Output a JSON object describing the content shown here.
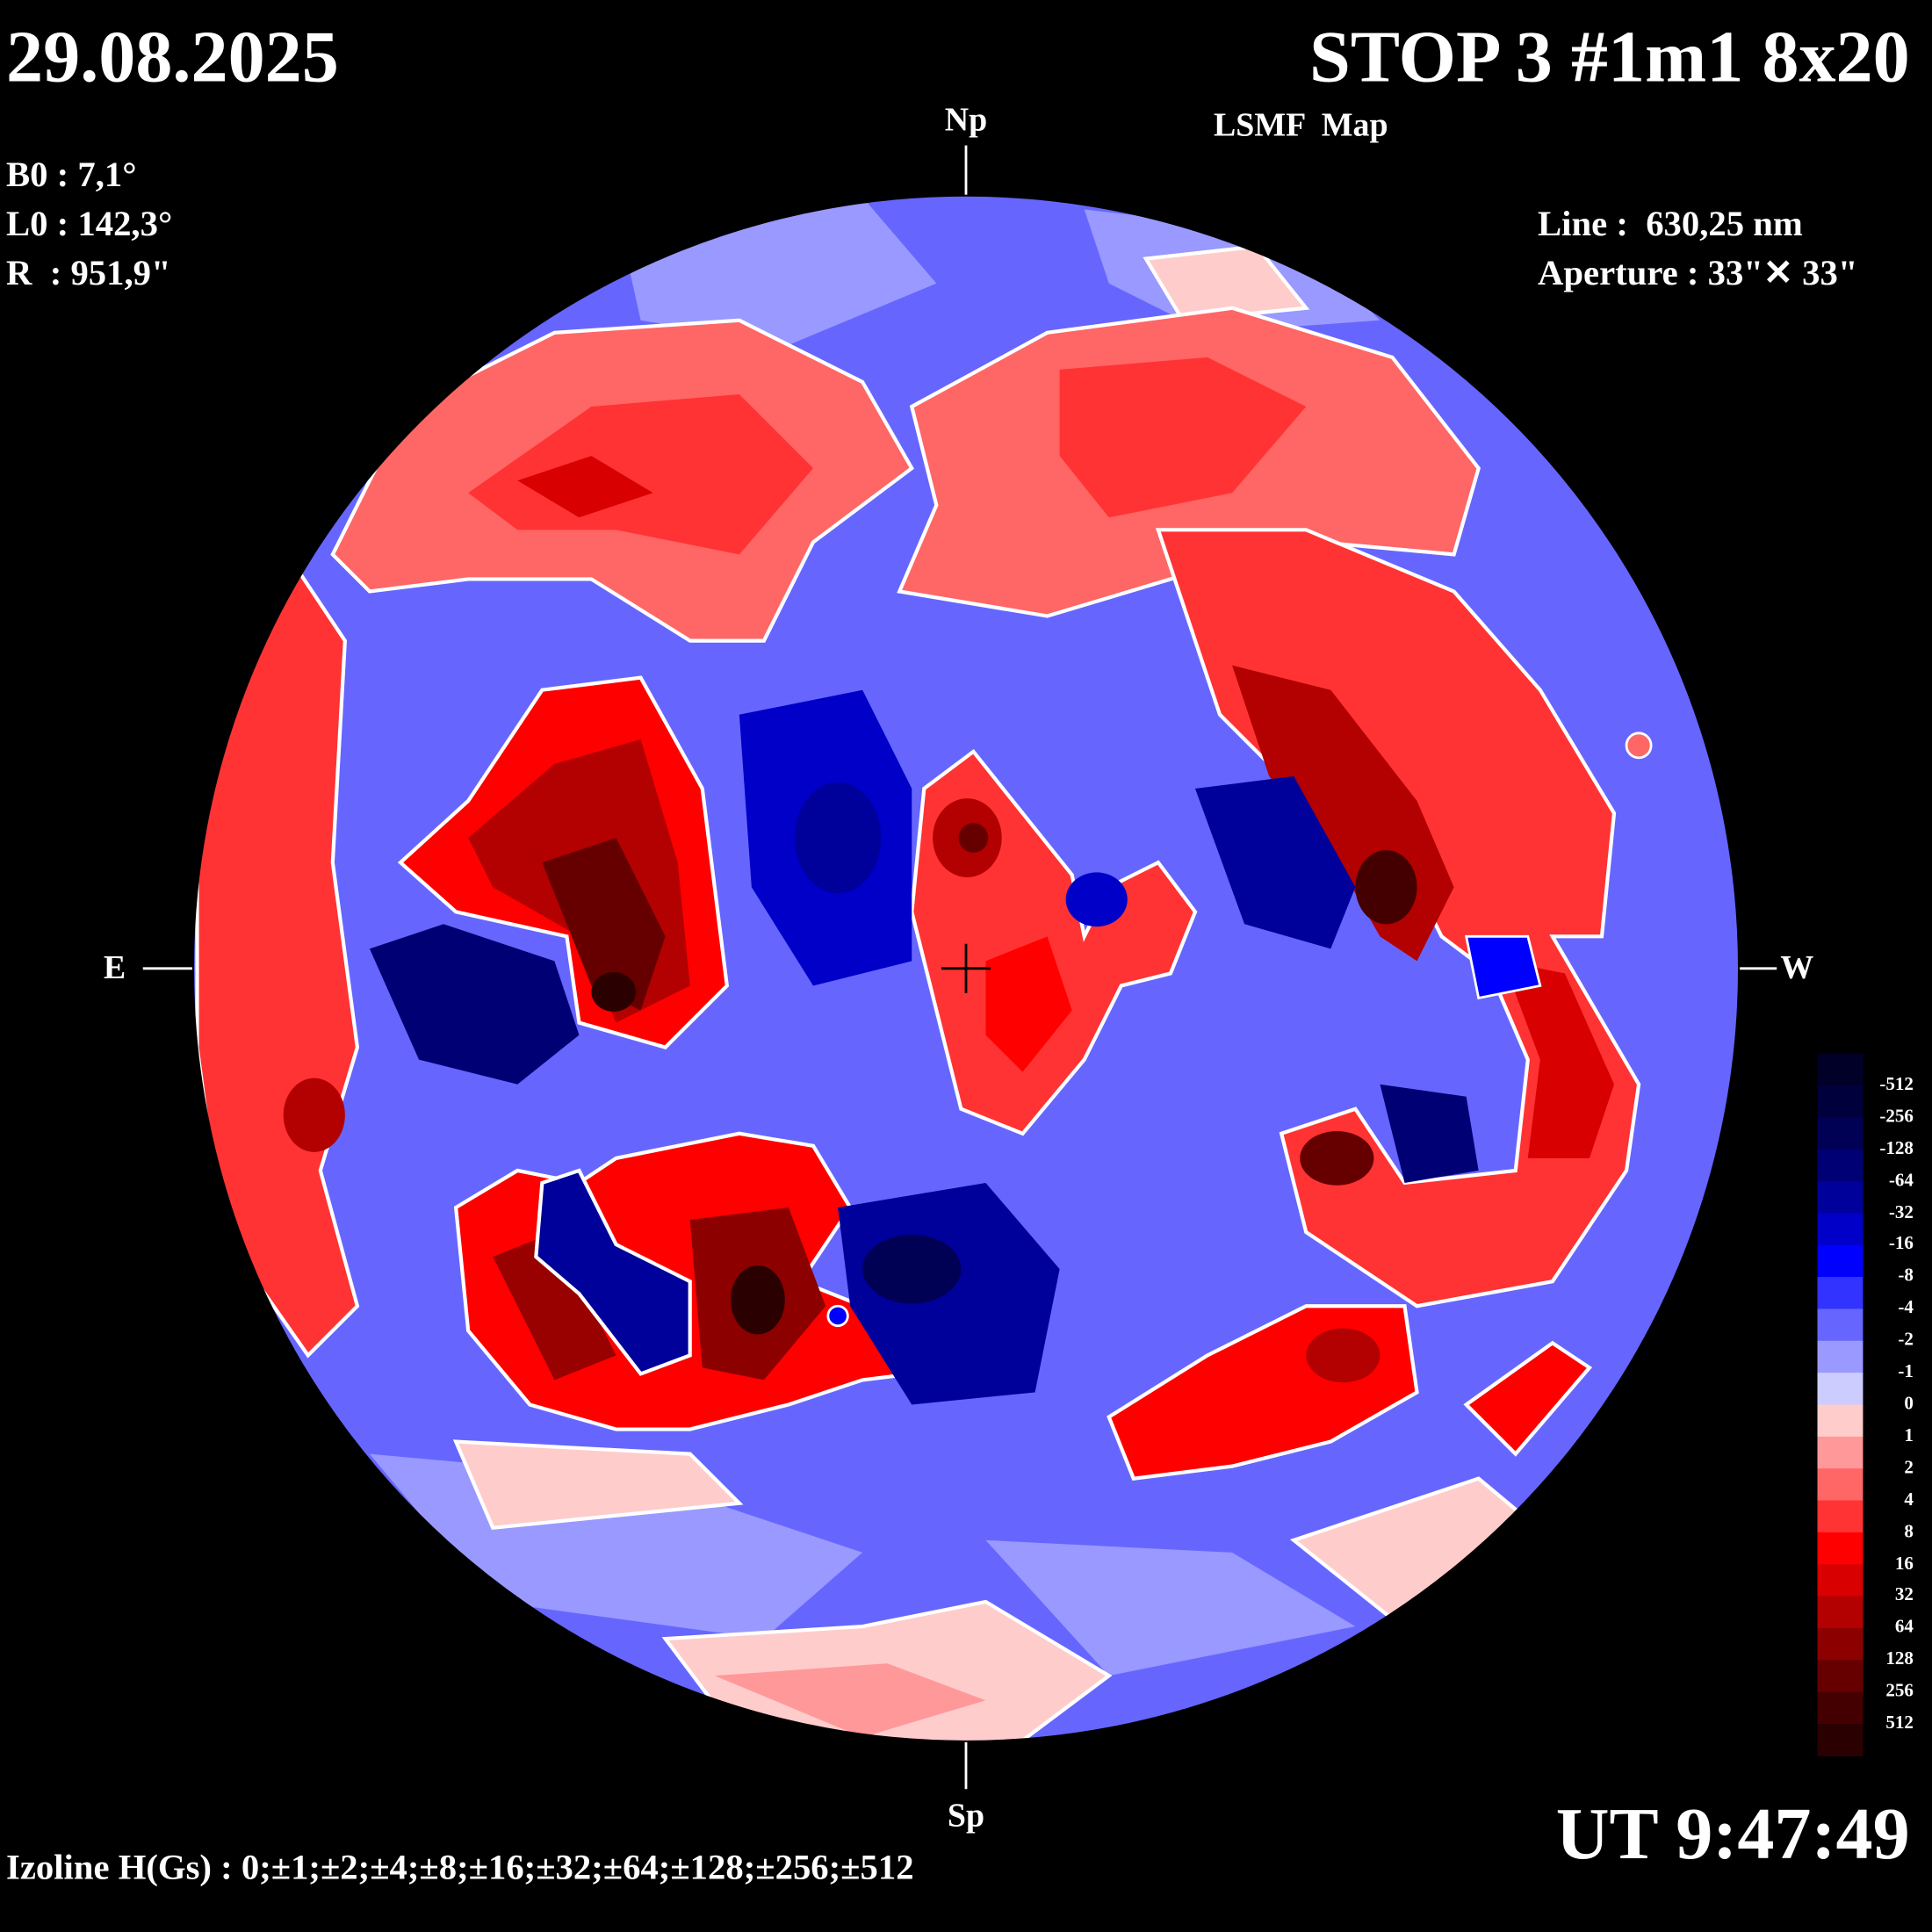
{
  "header": {
    "date": "29.08.2025",
    "title": "STOP 3 #1m1 8x20",
    "subtitle": "LSMF  Map"
  },
  "params_left": {
    "b0": "B0 : 7,1°",
    "l0": "L0 : 142,3°",
    "r": "R  : 951,9\""
  },
  "params_right": {
    "line": "Line :  630,25 nm",
    "aperture": "Aperture : 33\"✕ 33\""
  },
  "orientation": {
    "north": "Np",
    "south": "Sp",
    "east": "E",
    "west": "W"
  },
  "footer": {
    "isolines": "Izoline H(Gs) : 0;±1;±2;±4;±8;±16;±32;±64;±128;±256;±512",
    "time": "UT 9:47:49"
  },
  "colorbar": {
    "labels": [
      "-512",
      "-256",
      "-128",
      "-64",
      "-32",
      "-16",
      "-8",
      "-4",
      "-2",
      "-1",
      "0",
      "1",
      "2",
      "4",
      "8",
      "16",
      "32",
      "64",
      "128",
      "256",
      "512"
    ],
    "colors": [
      "#000028",
      "#00003c",
      "#000055",
      "#000075",
      "#00009a",
      "#0000c8",
      "#0000ff",
      "#3333ff",
      "#6666ff",
      "#9999ff",
      "#ccccff",
      "#ffcccc",
      "#ff9999",
      "#ff6666",
      "#ff3333",
      "#ff0000",
      "#d80000",
      "#b30000",
      "#8c0000",
      "#660000",
      "#440000",
      "#2a0000"
    ]
  }
}
